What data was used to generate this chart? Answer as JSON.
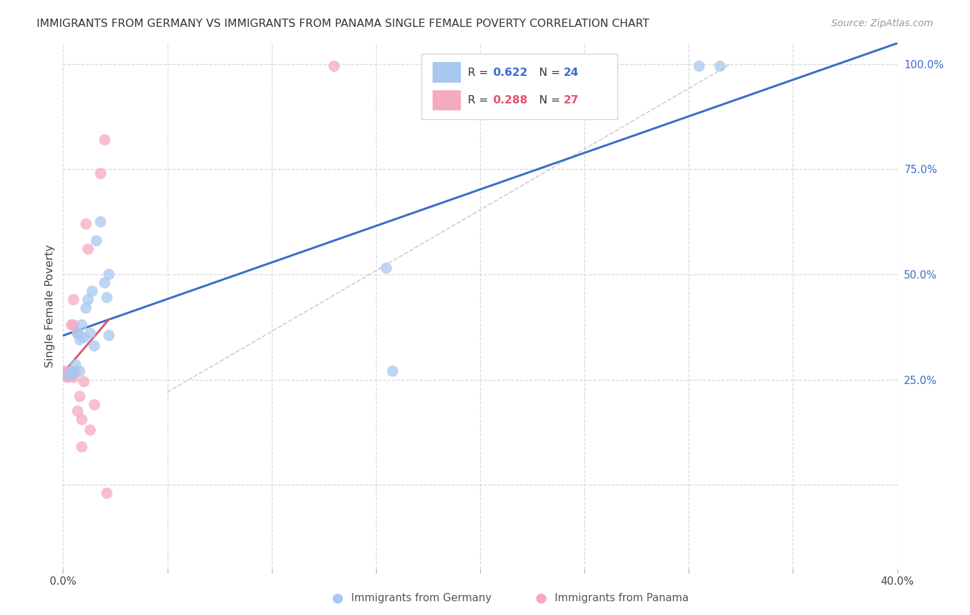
{
  "title": "IMMIGRANTS FROM GERMANY VS IMMIGRANTS FROM PANAMA SINGLE FEMALE POVERTY CORRELATION CHART",
  "source": "Source: ZipAtlas.com",
  "ylabel": "Single Female Poverty",
  "xlim": [
    0.0,
    0.4
  ],
  "ylim": [
    -0.2,
    1.05
  ],
  "yticks_right": [
    0.0,
    0.25,
    0.5,
    0.75,
    1.0
  ],
  "ytick_labels_right": [
    "",
    "25.0%",
    "50.0%",
    "75.0%",
    "100.0%"
  ],
  "background_color": "#ffffff",
  "grid_color": "#d8d8d8",
  "blue_scatter_color": "#a8c8f0",
  "pink_scatter_color": "#f5aac0",
  "blue_line_color": "#3b6bcc",
  "pink_line_color": "#e05575",
  "ref_line_color": "#cccccc",
  "germany_x": [
    0.003,
    0.004,
    0.005,
    0.006,
    0.007,
    0.008,
    0.008,
    0.009,
    0.01,
    0.011,
    0.012,
    0.013,
    0.014,
    0.015,
    0.016,
    0.018,
    0.02,
    0.021,
    0.022,
    0.022,
    0.155,
    0.158,
    0.305,
    0.315
  ],
  "germany_y": [
    0.26,
    0.27,
    0.265,
    0.285,
    0.36,
    0.27,
    0.345,
    0.38,
    0.35,
    0.42,
    0.44,
    0.36,
    0.46,
    0.33,
    0.58,
    0.625,
    0.48,
    0.445,
    0.5,
    0.355,
    0.515,
    0.27,
    0.995,
    0.995
  ],
  "panama_x": [
    0.0,
    0.001,
    0.001,
    0.002,
    0.002,
    0.003,
    0.003,
    0.004,
    0.004,
    0.005,
    0.005,
    0.005,
    0.006,
    0.007,
    0.007,
    0.008,
    0.009,
    0.009,
    0.01,
    0.011,
    0.012,
    0.013,
    0.015,
    0.018,
    0.02,
    0.021,
    0.13
  ],
  "panama_y": [
    0.26,
    0.265,
    0.27,
    0.255,
    0.26,
    0.26,
    0.265,
    0.26,
    0.38,
    0.255,
    0.38,
    0.44,
    0.27,
    0.36,
    0.175,
    0.21,
    0.155,
    0.09,
    0.245,
    0.62,
    0.56,
    0.13,
    0.19,
    0.74,
    0.82,
    -0.02,
    0.995
  ],
  "legend_r_blue": "0.622",
  "legend_n_blue": "24",
  "legend_r_pink": "0.288",
  "legend_n_pink": "27",
  "blue_text_color": "#3b6bcc",
  "pink_text_color": "#e05575"
}
